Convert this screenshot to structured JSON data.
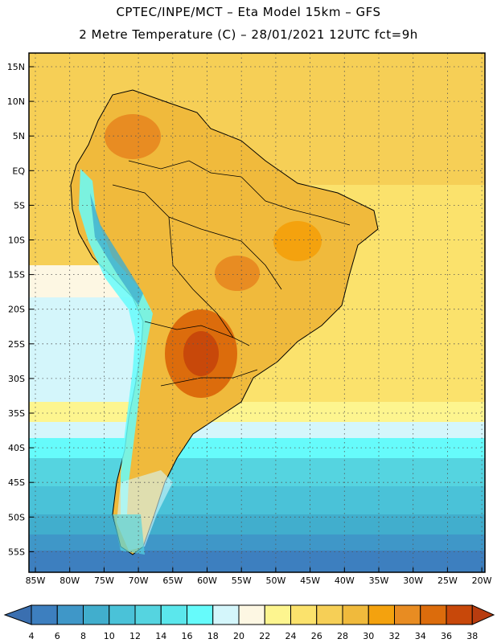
{
  "header": {
    "line1": "CPTEC/INPE/MCT –  Eta Model 15km – GFS",
    "line2": "2 Metre Temperature (C) – 28/01/2021 12UTC fct=9h"
  },
  "map": {
    "lat_labels": [
      "15N",
      "10N",
      "5N",
      "EQ",
      "5S",
      "10S",
      "15S",
      "20S",
      "25S",
      "30S",
      "35S",
      "40S",
      "45S",
      "50S",
      "55S"
    ],
    "lon_labels": [
      "85W",
      "80W",
      "75W",
      "70W",
      "65W",
      "60W",
      "55W",
      "50W",
      "45W",
      "40W",
      "35W",
      "30W",
      "25W",
      "20W"
    ]
  },
  "colorbar": {
    "ticks": [
      "4",
      "6",
      "8",
      "10",
      "12",
      "14",
      "16",
      "18",
      "20",
      "22",
      "24",
      "26",
      "28",
      "30",
      "32",
      "34",
      "36",
      "38"
    ],
    "colors": [
      "#3a6fb0",
      "#3d7fbf",
      "#3f97c8",
      "#41aecd",
      "#4ac2d8",
      "#55d4e0",
      "#5be7ec",
      "#66fbfb",
      "#d4f6fb",
      "#fdf7e3",
      "#fdf58f",
      "#fbe26c",
      "#f6cf56",
      "#f0ba3c",
      "#f4a20e",
      "#e88c22",
      "#dc6c0c",
      "#c8480a",
      "#b83c0f"
    ]
  }
}
